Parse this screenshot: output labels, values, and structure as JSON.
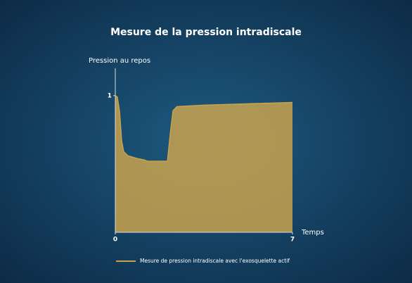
{
  "chart_data": {
    "type": "area",
    "title": "Mesure de la pression intradiscale",
    "y_label": "Pression au repos",
    "x_label": "Temps",
    "x": [
      0,
      0.08,
      0.17,
      0.25,
      0.33,
      0.5,
      0.86,
      1.14,
      1.28,
      2.06,
      2.17,
      2.28,
      2.44,
      3.5,
      5.17,
      7
    ],
    "series": [
      {
        "name": "Mesure de pression intradiscale avec l'exosquelette actif",
        "color": "#c9a24e",
        "values": [
          1.0,
          0.99,
          0.88,
          0.67,
          0.59,
          0.56,
          0.54,
          0.53,
          0.52,
          0.52,
          0.72,
          0.89,
          0.92,
          0.93,
          0.94,
          0.95
        ]
      }
    ],
    "xlim": [
      0,
      7
    ],
    "xticks": [
      0,
      7
    ],
    "ylim": [
      0,
      1.2
    ],
    "yticks": [
      1
    ]
  }
}
